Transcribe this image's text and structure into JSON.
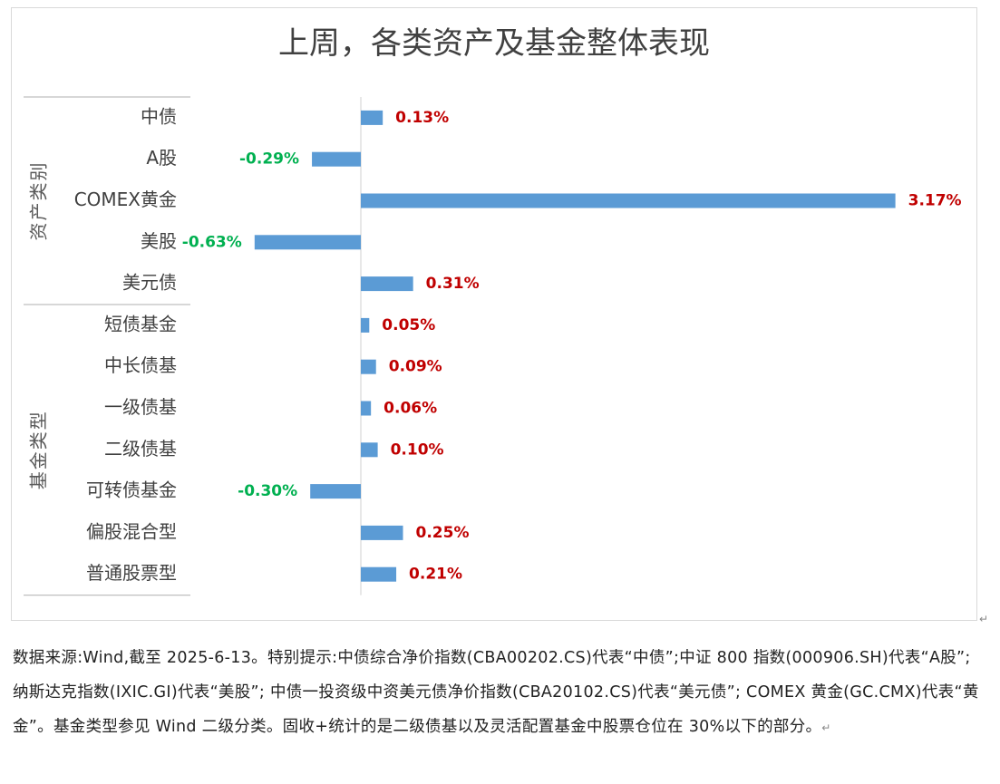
{
  "chart_data": {
    "type": "bar",
    "orientation": "horizontal",
    "title": "上周，各类资产及基金整体表现",
    "groups": [
      {
        "name": "资产类别",
        "categories": [
          "中债",
          "A股",
          "COMEX黄金",
          "美股",
          "美元债"
        ]
      },
      {
        "name": "基金类型",
        "categories": [
          "短债基金",
          "中长债基",
          "一级债基",
          "二级债基",
          "可转债基金",
          "偏股混合型",
          "普通股票型"
        ]
      }
    ],
    "categories": [
      "中债",
      "A股",
      "COMEX黄金",
      "美股",
      "美元债",
      "短债基金",
      "中长债基",
      "一级债基",
      "二级债基",
      "可转债基金",
      "偏股混合型",
      "普通股票型"
    ],
    "values": [
      0.13,
      -0.29,
      3.17,
      -0.63,
      0.31,
      0.05,
      0.09,
      0.06,
      0.1,
      -0.3,
      0.25,
      0.21
    ],
    "labels": [
      "0.13%",
      "-0.29%",
      "3.17%",
      "-0.63%",
      "0.31%",
      "0.05%",
      "0.09%",
      "0.06%",
      "0.10%",
      "-0.30%",
      "0.25%",
      "0.21%"
    ],
    "unit": "%",
    "bar_color": "#5b9bd5",
    "positive_label_color": "#c00000",
    "negative_label_color": "#00b050",
    "grid": false,
    "legend": "none"
  },
  "footnote": "数据来源:Wind,截至 2025-6-13。特别提示:中债综合净价指数(CBA00202.CS)代表“中债”;中证 800 指数(000906.SH)代表“A股”; 纳斯达克指数(IXIC.GI)代表“美股”; 中债一投资级中资美元债净价指数(CBA20102.CS)代表“美元债”; COMEX 黄金(GC.CMX)代表“黄金”。基金类型参见 Wind 二级分类。固收+统计的是二级债基以及灵活配置基金中股票仓位在 30%以下的部分。",
  "marks": {
    "paragraph": "↵"
  }
}
